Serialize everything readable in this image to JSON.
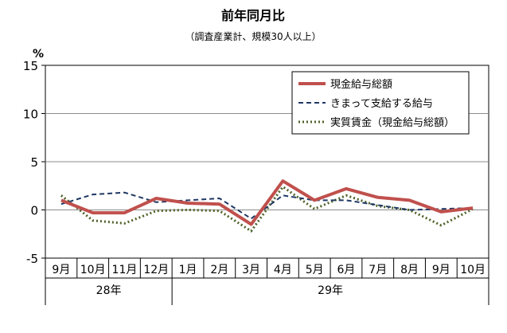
{
  "chart_data": {
    "type": "line",
    "title": "前年同月比",
    "subtitle": "（調査産業計、規模30人以上）",
    "ylabel": "%",
    "ylim": [
      -5,
      15
    ],
    "yticks": [
      -5,
      0,
      5,
      10,
      15
    ],
    "grid": true,
    "legend_position": "top-right",
    "categories": [
      "9月",
      "10月",
      "11月",
      "12月",
      "1月",
      "2月",
      "3月",
      "4月",
      "5月",
      "6月",
      "7月",
      "8月",
      "9月",
      "10月"
    ],
    "year_groups": [
      {
        "label": "28年",
        "start": 0,
        "end": 3
      },
      {
        "label": "29年",
        "start": 4,
        "end": 13
      }
    ],
    "series": [
      {
        "name": "現金給与総額",
        "color": "#c0504d",
        "style": "solid",
        "values": [
          1.0,
          -0.3,
          -0.3,
          1.2,
          0.7,
          0.6,
          -1.5,
          3.0,
          1.0,
          2.2,
          1.3,
          1.0,
          -0.2,
          0.2
        ]
      },
      {
        "name": "きまって支給する給与",
        "color": "#1f3864",
        "style": "dashed",
        "values": [
          0.6,
          1.6,
          1.8,
          0.8,
          1.0,
          1.2,
          -0.9,
          1.5,
          1.0,
          1.0,
          0.5,
          0.0,
          0.1,
          0.2
        ]
      },
      {
        "name": "実質賃金（現金給与総額）",
        "color": "#4f6228",
        "style": "dotted",
        "values": [
          1.5,
          -1.1,
          -1.4,
          -0.1,
          0.0,
          -0.1,
          -2.2,
          2.4,
          0.1,
          1.5,
          0.4,
          0.0,
          -1.6,
          0.1
        ]
      }
    ]
  }
}
